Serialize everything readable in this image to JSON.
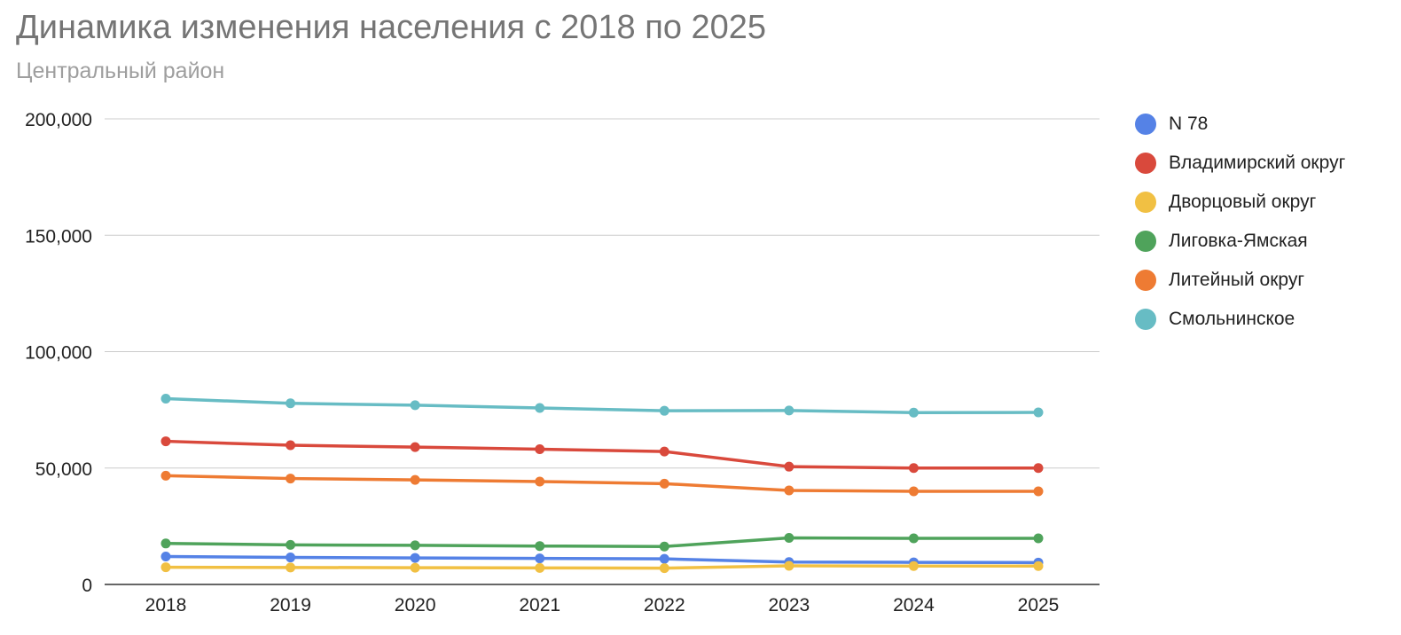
{
  "chart_data": {
    "type": "line",
    "title": "Динамика изменения населения с 2018 по 2025",
    "subtitle": "Центральный район",
    "xlabel": "",
    "ylabel": "",
    "categories": [
      "2018",
      "2019",
      "2020",
      "2021",
      "2022",
      "2023",
      "2024",
      "2025"
    ],
    "ylim": [
      0,
      200000
    ],
    "yticks": [
      0,
      50000,
      100000,
      150000,
      200000
    ],
    "ytick_labels": [
      "0",
      "50,000",
      "100,000",
      "150,000",
      "200,000"
    ],
    "grid": true,
    "legend_position": "right",
    "series": [
      {
        "name": "N 78",
        "color": "#5582e6",
        "values": [
          12000,
          11600,
          11400,
          11200,
          11000,
          9600,
          9500,
          9400
        ]
      },
      {
        "name": "Владимирский округ",
        "color": "#d9493c",
        "values": [
          61500,
          59800,
          59000,
          58100,
          57100,
          50600,
          50000,
          50000
        ]
      },
      {
        "name": "Дворцовый округ",
        "color": "#f1c043",
        "values": [
          7400,
          7300,
          7200,
          7100,
          7000,
          8000,
          7900,
          7900
        ]
      },
      {
        "name": "Лиговка-Ямская",
        "color": "#4fa35b",
        "values": [
          17600,
          17000,
          16800,
          16500,
          16300,
          20000,
          19800,
          19800
        ]
      },
      {
        "name": "Литейный округ",
        "color": "#ee7b33",
        "values": [
          46700,
          45500,
          44900,
          44200,
          43300,
          40400,
          40000,
          40000
        ]
      },
      {
        "name": "Смольнинское",
        "color": "#67bcc4",
        "values": [
          79800,
          77800,
          77000,
          75800,
          74600,
          74700,
          73800,
          73900
        ]
      }
    ]
  }
}
